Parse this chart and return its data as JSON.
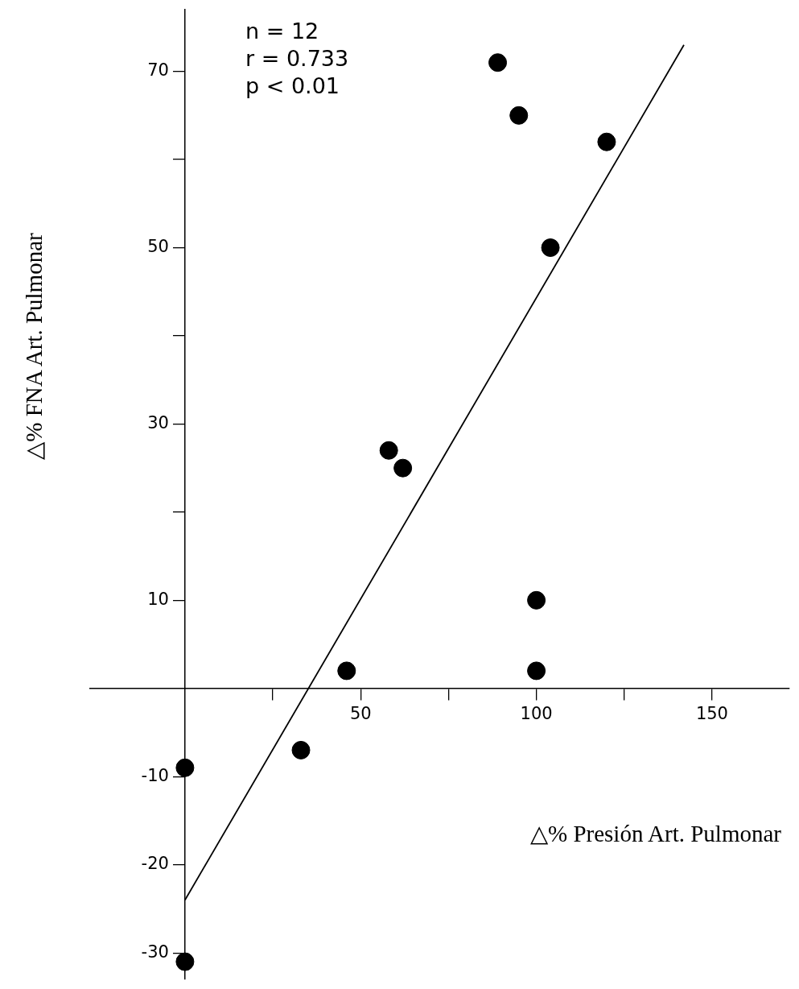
{
  "chart_data": {
    "type": "scatter",
    "xlabel": "△% Presión Art. Pulmonar",
    "ylabel": "△% FNA Art. Pulmonar",
    "annotations": [
      "n = 12",
      "r = 0.733",
      "p < 0.01"
    ],
    "series": [
      {
        "color": "#000000",
        "marker": "circle",
        "x": [
          0,
          0,
          33,
          46,
          58,
          62,
          89,
          95,
          120,
          104,
          100,
          100
        ],
        "values": [
          -9,
          -31,
          -7,
          2,
          27,
          25,
          71,
          65,
          62,
          50,
          10,
          2
        ]
      },
      {
        "type": "line",
        "color": "#000000",
        "line_style": "solid",
        "x": [
          0,
          142
        ],
        "values": [
          -24,
          73
        ]
      }
    ],
    "xlim": [
      -27,
      172
    ],
    "ylim": [
      -33,
      77
    ],
    "xticks": [
      {
        "value": 25,
        "label": null
      },
      50,
      {
        "value": 75,
        "label": null
      },
      100,
      {
        "value": 125,
        "label": null
      },
      150
    ],
    "yticks": [
      -30,
      -20,
      -10,
      10,
      {
        "value": 20,
        "label": null
      },
      30,
      {
        "value": 40,
        "label": null
      },
      50,
      {
        "value": 60,
        "label": null
      },
      70
    ],
    "grid": false
  }
}
